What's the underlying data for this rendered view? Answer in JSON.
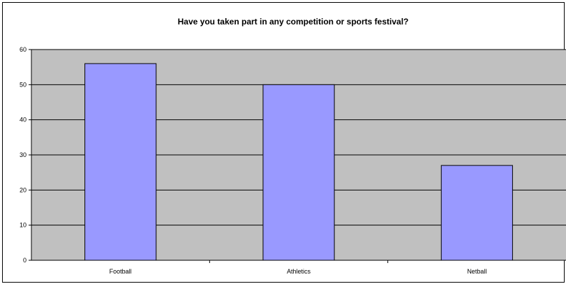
{
  "chart_data": {
    "type": "bar",
    "title": "Have you taken part in any competition or sports festival?",
    "xlabel": "",
    "ylabel": "",
    "categories": [
      "Football",
      "Athletics",
      "Netball"
    ],
    "values": [
      56,
      50,
      27
    ],
    "ylim": [
      0,
      60
    ],
    "yticks": [
      0,
      10,
      20,
      30,
      40,
      50,
      60
    ],
    "grid": true,
    "legend": "none",
    "colors": {
      "bar_fill": "#9999ff",
      "bar_stroke": "#000000",
      "plot_background": "#c0c0c0",
      "gridline": "#000000"
    }
  }
}
